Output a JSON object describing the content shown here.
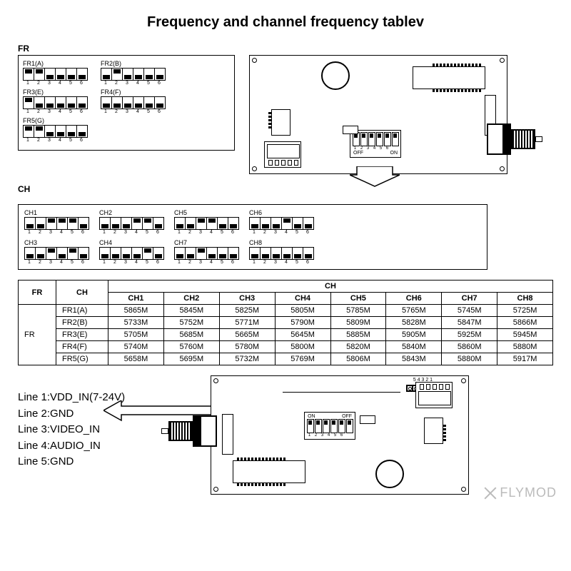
{
  "title": "Frequency and channel frequency tablev",
  "fr_label": "FR",
  "ch_label": "CH",
  "fr_groups": [
    {
      "label": "FR1(A)",
      "pattern": [
        1,
        1,
        0,
        0,
        0,
        0
      ]
    },
    {
      "label": "FR2(B)",
      "pattern": [
        0,
        1,
        0,
        0,
        0,
        0
      ]
    },
    {
      "label": "FR3(E)",
      "pattern": [
        1,
        0,
        0,
        0,
        0,
        0
      ]
    },
    {
      "label": "FR4(F)",
      "pattern": [
        0,
        0,
        0,
        0,
        0,
        0
      ]
    },
    {
      "label": "FR5(G)",
      "pattern": [
        1,
        1,
        0,
        0,
        0,
        0
      ]
    }
  ],
  "ch_groups": [
    {
      "label": "CH1",
      "pattern": [
        0,
        0,
        1,
        1,
        1,
        0
      ]
    },
    {
      "label": "CH2",
      "pattern": [
        0,
        0,
        0,
        1,
        1,
        0
      ]
    },
    {
      "label": "CH5",
      "pattern": [
        0,
        0,
        1,
        1,
        0,
        0
      ]
    },
    {
      "label": "CH6",
      "pattern": [
        0,
        0,
        0,
        1,
        0,
        0
      ]
    },
    {
      "label": "CH3",
      "pattern": [
        0,
        0,
        1,
        0,
        1,
        0
      ]
    },
    {
      "label": "CH4",
      "pattern": [
        0,
        0,
        0,
        0,
        1,
        0
      ]
    },
    {
      "label": "CH7",
      "pattern": [
        0,
        0,
        1,
        0,
        0,
        0
      ]
    },
    {
      "label": "CH8",
      "pattern": [
        0,
        0,
        0,
        0,
        0,
        0
      ]
    }
  ],
  "dip_numbers": [
    "1",
    "2",
    "3",
    "4",
    "5",
    "6"
  ],
  "dip_off": "OFF",
  "dip_on": "ON",
  "table": {
    "corner": "FR",
    "top_header": "CH",
    "cols": [
      "CH1",
      "CH2",
      "CH3",
      "CH4",
      "CH5",
      "CH6",
      "CH7",
      "CH8"
    ],
    "side_header": "FR",
    "rows": [
      {
        "label": "FR1(A)",
        "cells": [
          "5865M",
          "5845M",
          "5825M",
          "5805M",
          "5785M",
          "5765M",
          "5745M",
          "5725M"
        ]
      },
      {
        "label": "FR2(B)",
        "cells": [
          "5733M",
          "5752M",
          "5771M",
          "5790M",
          "5809M",
          "5828M",
          "5847M",
          "5866M"
        ]
      },
      {
        "label": "FR3(E)",
        "cells": [
          "5705M",
          "5685M",
          "5665M",
          "5645M",
          "5885M",
          "5905M",
          "5925M",
          "5945M"
        ]
      },
      {
        "label": "FR4(F)",
        "cells": [
          "5740M",
          "5760M",
          "5780M",
          "5800M",
          "5820M",
          "5840M",
          "5860M",
          "5880M"
        ]
      },
      {
        "label": "FR5(G)",
        "cells": [
          "5658M",
          "5695M",
          "5732M",
          "5769M",
          "5806M",
          "5843M",
          "5880M",
          "5917M"
        ]
      }
    ]
  },
  "lines": [
    "Line 1:VDD_IN(7-24V)",
    "Line 2:GND",
    "Line 3:VIDEO_IN",
    "Line 4:AUDIO_IN",
    "Line 5:GND"
  ],
  "pin_labels": "5 4 3 2 1",
  "watermark": "FLYMOD",
  "colors": {
    "border": "#000000",
    "background": "#ffffff",
    "watermark": "#bbbbbb"
  }
}
